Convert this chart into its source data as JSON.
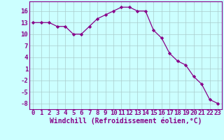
{
  "x": [
    0,
    1,
    2,
    3,
    4,
    5,
    6,
    7,
    8,
    9,
    10,
    11,
    12,
    13,
    14,
    15,
    16,
    17,
    18,
    19,
    20,
    21,
    22,
    23
  ],
  "y": [
    13,
    13,
    13,
    12,
    12,
    10,
    10,
    12,
    14,
    15,
    16,
    17,
    17,
    16,
    16,
    11,
    9,
    5,
    3,
    2,
    -1,
    -3,
    -7,
    -8
  ],
  "xlabel": "Windchill (Refroidissement éolien,°C)",
  "line_color": "#880088",
  "marker": "D",
  "marker_size": 2.2,
  "bg_color": "#ccffff",
  "grid_color": "#aacccc",
  "yticks": [
    16,
    13,
    10,
    7,
    4,
    1,
    -2,
    -5,
    -8
  ],
  "ylim": [
    -9.5,
    18.5
  ],
  "xlim": [
    -0.5,
    23.5
  ],
  "tick_fontsize": 6.5,
  "xlabel_fontsize": 7.0
}
